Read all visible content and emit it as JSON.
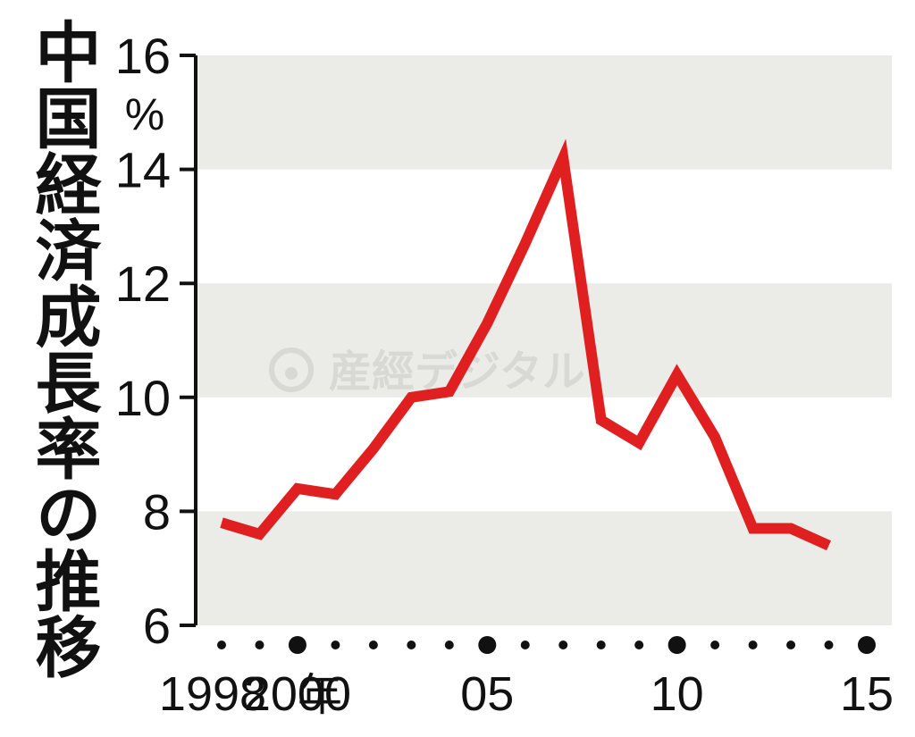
{
  "title": "中国経済成長率の推移",
  "watermark": "産經デジタル",
  "chart_data": {
    "type": "line",
    "ylabel": "%",
    "ylim": [
      6,
      16
    ],
    "y_ticks": [
      "6",
      "8",
      "10",
      "12",
      "14",
      "16"
    ],
    "xlim": [
      1998,
      2015
    ],
    "x_ticks": [
      {
        "year": 1998,
        "label": "1998",
        "suffix": "年"
      },
      {
        "year": 2000,
        "label": "2000"
      },
      {
        "year": 2005,
        "label": "05"
      },
      {
        "year": 2010,
        "label": "10"
      },
      {
        "year": 2015,
        "label": "15"
      }
    ],
    "major_dot_years": [
      2000,
      2005,
      2010,
      2015
    ],
    "bands": [
      [
        6,
        8
      ],
      [
        10,
        12
      ],
      [
        14,
        16
      ]
    ],
    "series": [
      {
        "color": "#e02020",
        "x": [
          1998,
          1999,
          2000,
          2001,
          2002,
          2003,
          2004,
          2005,
          2006,
          2007,
          2008,
          2009,
          2010,
          2011,
          2012,
          2013,
          2014
        ],
        "values": [
          7.8,
          7.6,
          8.4,
          8.3,
          9.1,
          10.0,
          10.1,
          11.3,
          12.7,
          14.2,
          9.6,
          9.2,
          10.4,
          9.3,
          7.7,
          7.7,
          7.4
        ]
      }
    ],
    "band_color": "#ebebe7",
    "axis_color": "#111111"
  }
}
